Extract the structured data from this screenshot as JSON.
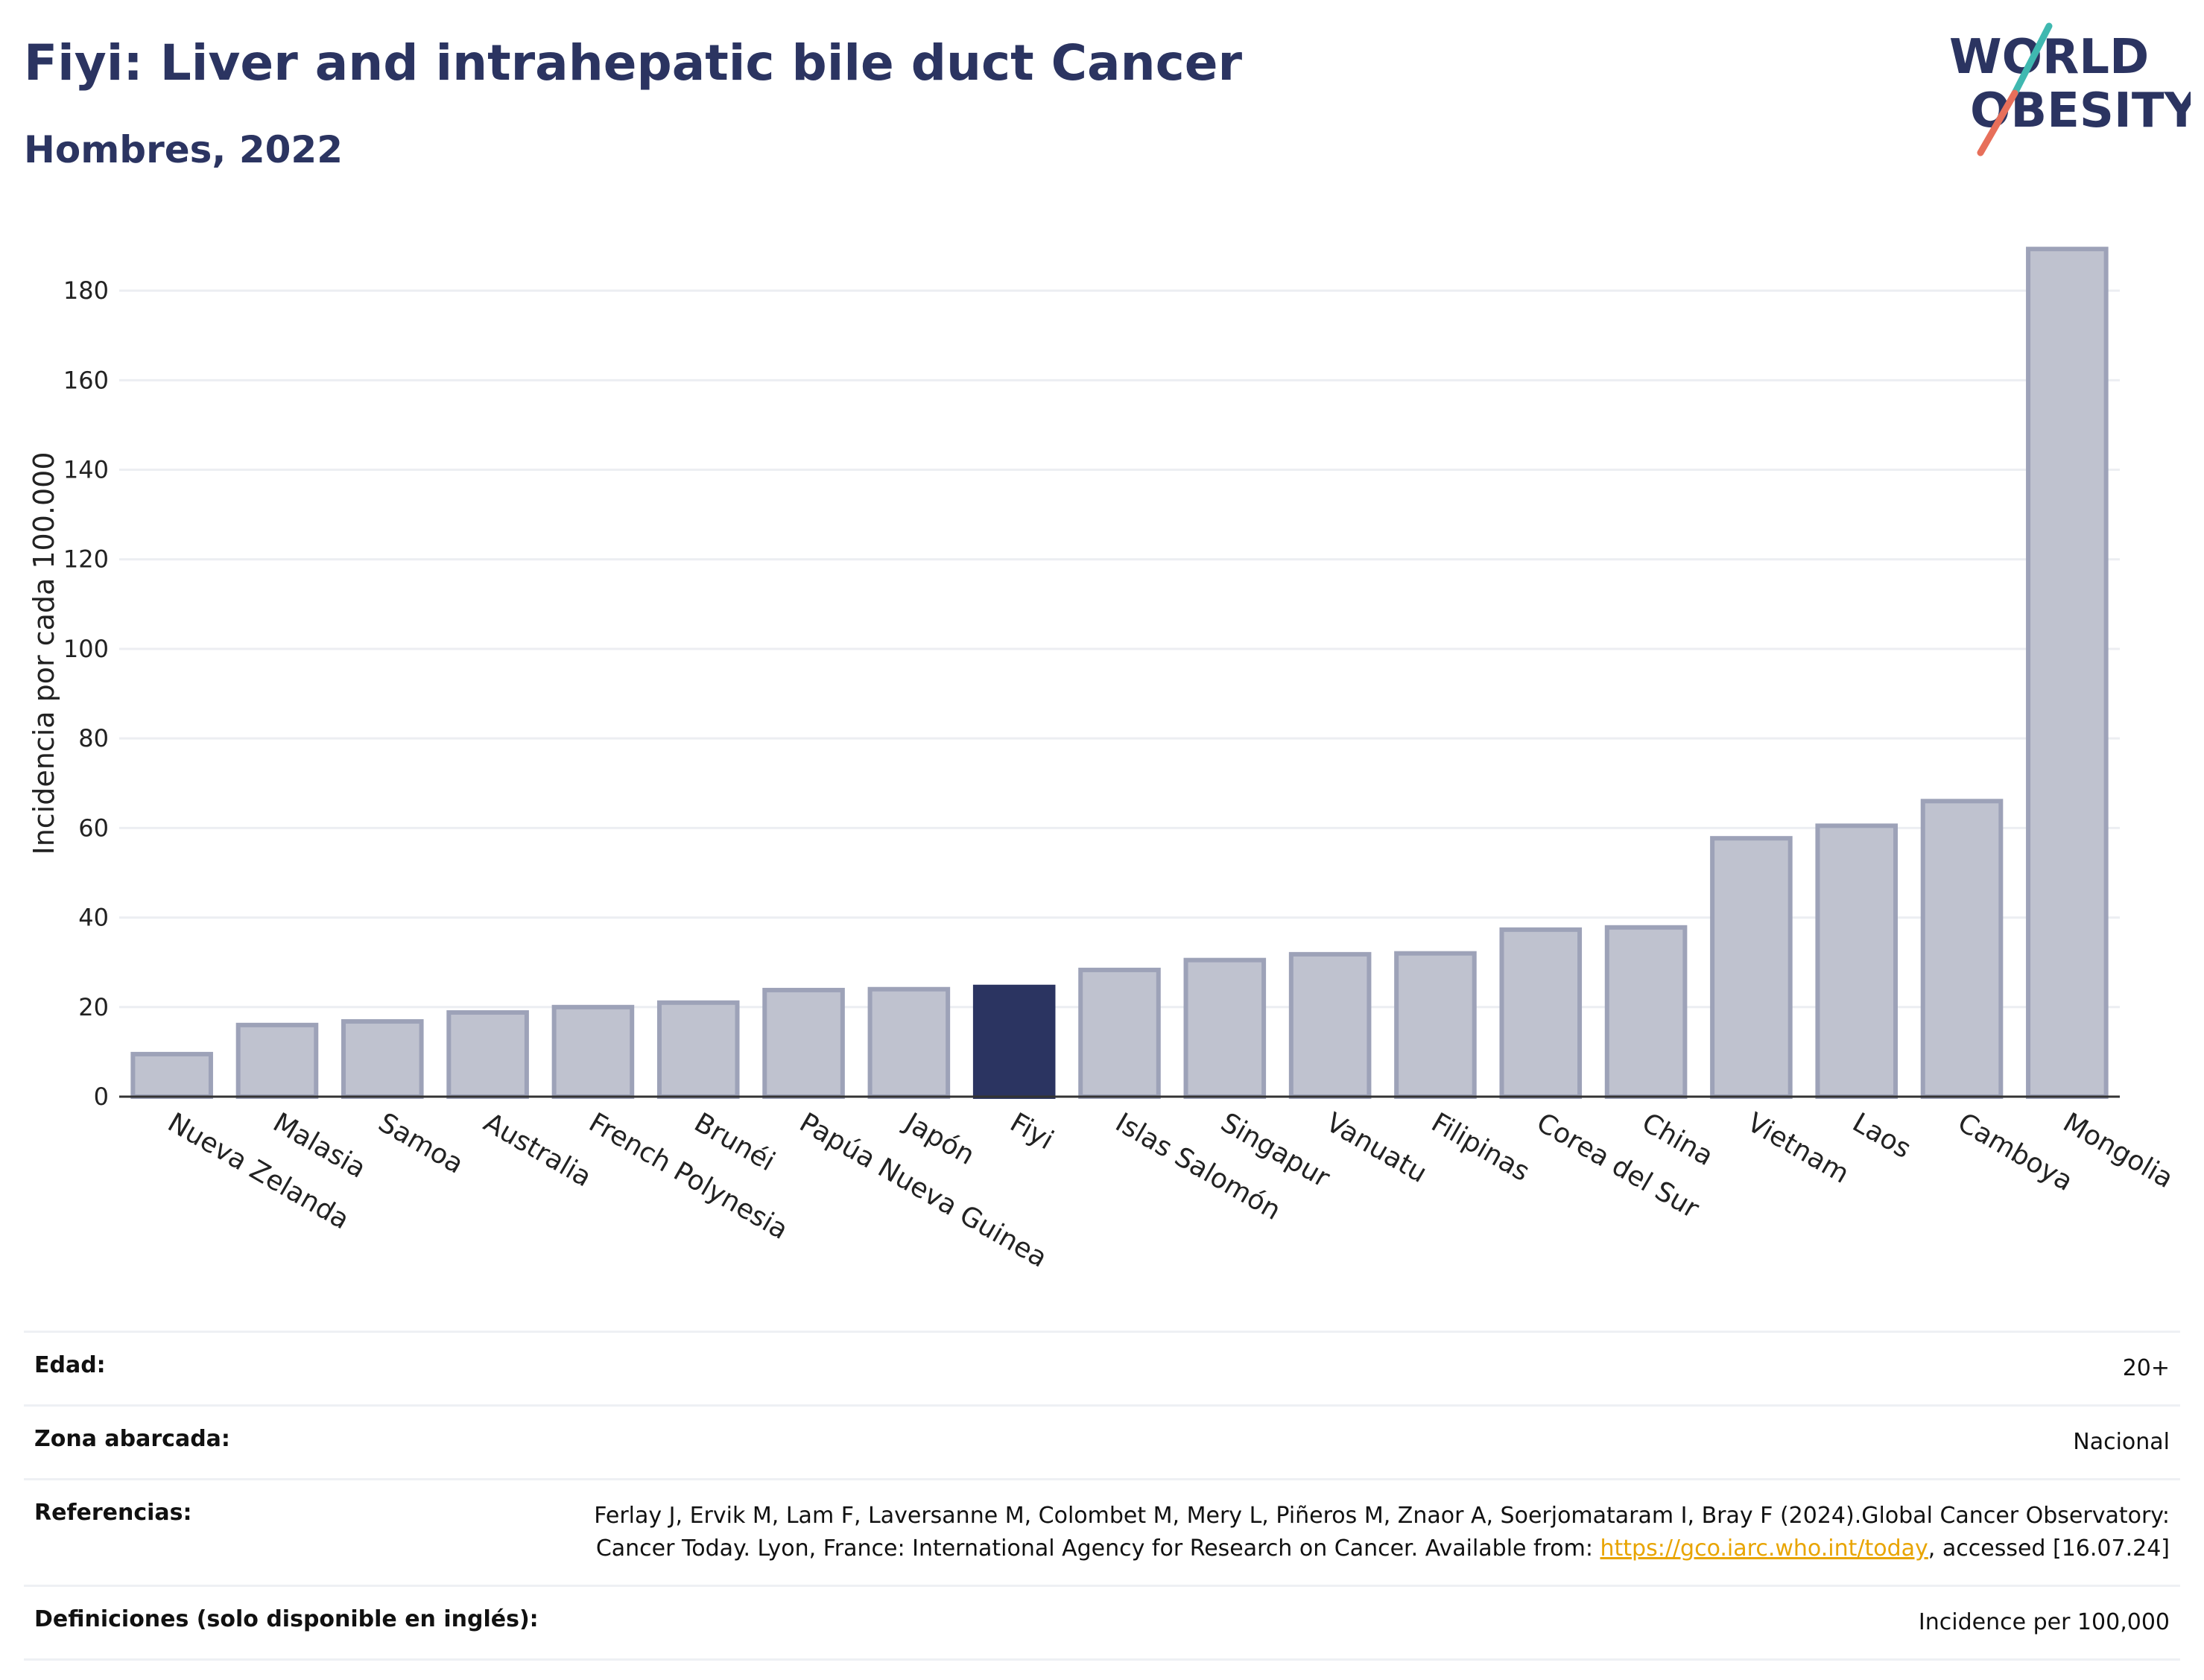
{
  "header": {
    "title": "Fiyi: Liver and intrahepatic bile duct Cancer",
    "subtitle": "Hombres, 2022",
    "logo_line1": "WORLD",
    "logo_line2": "OBESITY"
  },
  "chart_data": {
    "type": "bar",
    "title": "Fiyi: Liver and intrahepatic bile duct Cancer",
    "subtitle": "Hombres, 2022",
    "ylabel": "Incidencia por cada 100.000",
    "xlabel": "",
    "ylim": [
      0,
      190
    ],
    "yticks": [
      0,
      20,
      40,
      60,
      80,
      100,
      120,
      140,
      160,
      180
    ],
    "grid": true,
    "highlight": "Fiyi",
    "categories": [
      "Nueva Zelanda",
      "Malasia",
      "Samoa",
      "Australia",
      "French Polynesia",
      "Brunéi",
      "Papúa Nueva Guinea",
      "Japón",
      "Fiyi",
      "Islas Salomón",
      "Singapur",
      "Vanuatu",
      "Filipinas",
      "Corea del Sur",
      "China",
      "Vietnam",
      "Laos",
      "Camboya",
      "Mongolia"
    ],
    "values": [
      9.5,
      16,
      16.8,
      18.8,
      20,
      21,
      23.8,
      24,
      24.5,
      28.3,
      30.5,
      31.8,
      32,
      37.3,
      37.8,
      57.7,
      60.5,
      66,
      189.3
    ]
  },
  "colors": {
    "bar": "#bfc2cf",
    "bar_border": "#9da2b8",
    "highlight": "#2b3461",
    "title": "#2b3461",
    "logo_teal": "#3fb8b0",
    "logo_coral": "#e76f5a",
    "link": "#e8a400"
  },
  "info": {
    "edad_label": "Edad:",
    "edad_value": "20+",
    "zona_label": "Zona abarcada:",
    "zona_value": "Nacional",
    "ref_label": "Referencias:",
    "ref_text_1": "Ferlay J, Ervik M, Lam F, Laversanne M, Colombet M, Mery L, Piñeros M, Znaor A, Soerjomataram I, Bray F (2024).Global Cancer Observatory: Cancer Today. Lyon, France: International Agency for Research on Cancer. Available from: ",
    "ref_link": "https://gco.iarc.who.int/today",
    "ref_text_2": ", accessed [16.07.24]",
    "def_label": "Definiciones (solo disponible en inglés):",
    "def_value": "Incidence per 100,000"
  }
}
